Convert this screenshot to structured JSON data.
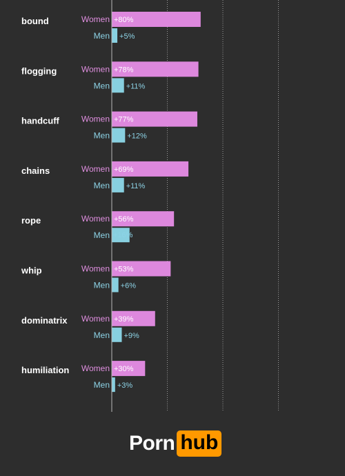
{
  "chart_data": {
    "type": "bar",
    "orientation": "horizontal",
    "categories": [
      "bound",
      "flogging",
      "handcuff",
      "chains",
      "rope",
      "whip",
      "dominatrix",
      "humiliation"
    ],
    "series": [
      {
        "name": "Women",
        "values": [
          80,
          78,
          77,
          69,
          56,
          53,
          39,
          30
        ],
        "labels": [
          "+80%",
          "+78%",
          "+77%",
          "+69%",
          "+56%",
          "+53%",
          "+39%",
          "+30%"
        ],
        "color": "#dd88dd"
      },
      {
        "name": "Men",
        "values": [
          5,
          11,
          12,
          11,
          16,
          6,
          9,
          3
        ],
        "labels": [
          "+5%",
          "+11%",
          "+12%",
          "+11%",
          "+16%",
          "+6%",
          "+9%",
          "+3%"
        ],
        "color": "#88d0e0"
      }
    ],
    "xlim": [
      0,
      200
    ],
    "grid_x": [
      50,
      100,
      150
    ],
    "grid": true,
    "title": "",
    "xlabel": "",
    "ylabel": ""
  },
  "colors": {
    "background": "#2d2d2d",
    "women": "#dd88dd",
    "men": "#88d0e0",
    "brand_accent": "#ff9900"
  },
  "logo": {
    "part1": "Porn",
    "part2": "hub"
  }
}
